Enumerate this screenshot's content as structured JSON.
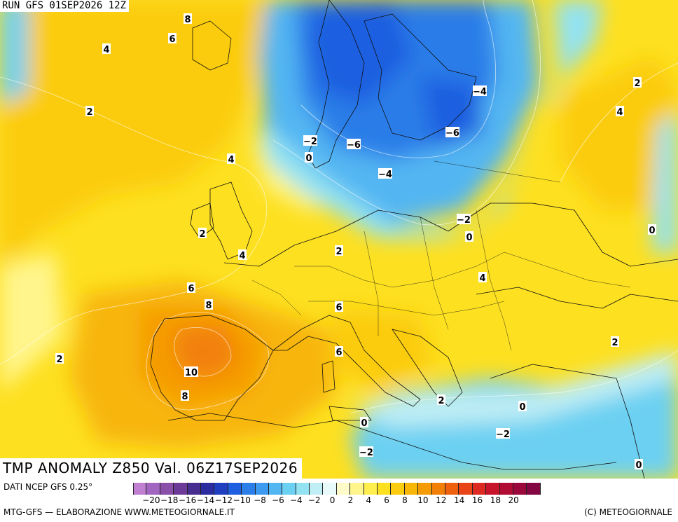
{
  "header": {
    "run_label": "RUN GFS 01SEP2026 12Z"
  },
  "title": {
    "text": "TMP ANOMALY Z850 Val. 06Z17SEP2026"
  },
  "footer": {
    "data_source": "DATI NCEP GFS 0.25°",
    "credit_left": "MTG-GFS — ELABORAZIONE WWW.METEOGIORNALE.IT",
    "credit_right": "(C) METEOGIORNALE"
  },
  "map": {
    "region": "Europe",
    "variable": "TMP ANOMALY Z850",
    "contour_labels": [
      {
        "text": "8"
      },
      {
        "text": "6"
      },
      {
        "text": "4"
      },
      {
        "text": "2"
      },
      {
        "text": "4"
      },
      {
        "text": "2"
      },
      {
        "text": "4"
      },
      {
        "text": "6"
      },
      {
        "text": "8"
      },
      {
        "text": "10"
      },
      {
        "text": "8"
      },
      {
        "text": "2"
      },
      {
        "text": "−2"
      },
      {
        "text": "0"
      },
      {
        "text": "−6"
      },
      {
        "text": "−4"
      },
      {
        "text": "−4"
      },
      {
        "text": "−6"
      },
      {
        "text": "−2"
      },
      {
        "text": "0"
      },
      {
        "text": "2"
      },
      {
        "text": "4"
      },
      {
        "text": "6"
      },
      {
        "text": "6"
      },
      {
        "text": "2"
      },
      {
        "text": "0"
      },
      {
        "text": "−2"
      },
      {
        "text": "0"
      },
      {
        "text": "−2"
      },
      {
        "text": "0"
      },
      {
        "text": "2"
      },
      {
        "text": "4"
      },
      {
        "text": "2"
      },
      {
        "text": "0"
      }
    ]
  },
  "legend": {
    "colors": [
      "#c07fd0",
      "#a266c0",
      "#8a4fa8",
      "#6e3a98",
      "#482d90",
      "#2b2ca0",
      "#1f3fc0",
      "#1e5ee0",
      "#2b7de8",
      "#3c9af0",
      "#52b6f2",
      "#6cd0f2",
      "#92e2f2",
      "#bfeef4",
      "#e8fafa",
      "#fffbc8",
      "#fff58c",
      "#ffee4e",
      "#fde020",
      "#fbcc10",
      "#f8b608",
      "#f59b06",
      "#f28008",
      "#ee600e",
      "#e84418",
      "#dc2a22",
      "#c8142a",
      "#b00c34",
      "#9a083c",
      "#840642"
    ],
    "ticks": [
      "−20",
      "−18",
      "−16",
      "−14",
      "−12",
      "−10",
      "−8",
      "−6",
      "−4",
      "−2",
      "0",
      "2",
      "4",
      "6",
      "8",
      "10",
      "12",
      "14",
      "16",
      "18",
      "20"
    ],
    "tick_values": [
      -20,
      -18,
      -16,
      -14,
      -12,
      -10,
      -8,
      -6,
      -4,
      -2,
      0,
      2,
      4,
      6,
      8,
      10,
      12,
      14,
      16,
      18,
      20
    ],
    "min": -22,
    "max": 22
  }
}
